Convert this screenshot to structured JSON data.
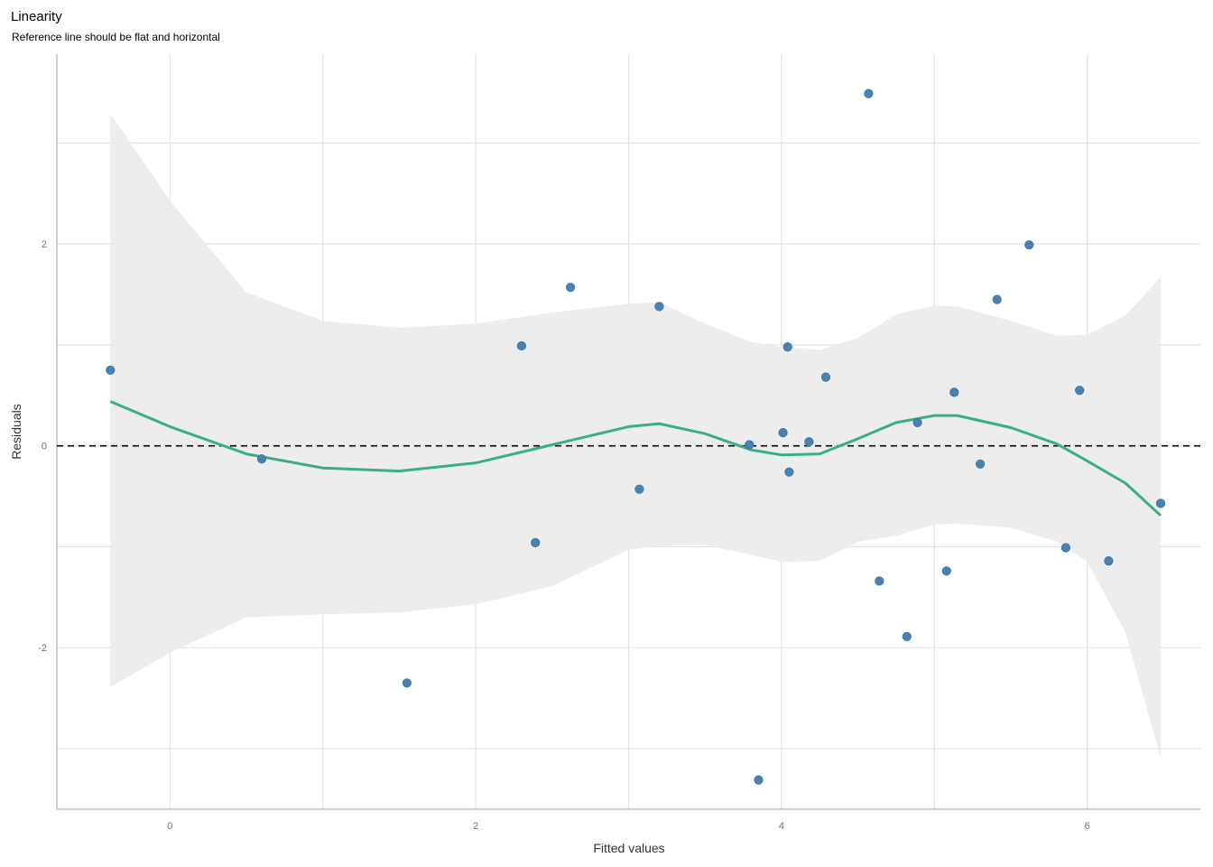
{
  "chart_data": {
    "type": "scatter",
    "title": "Linearity",
    "subtitle": "Reference line should be flat and horizontal",
    "xlabel": "Fitted values",
    "ylabel": "Residuals",
    "xlim": [
      -0.74,
      6.74
    ],
    "ylim": [
      -3.6,
      3.88
    ],
    "x_ticks": [
      0,
      2,
      4,
      6
    ],
    "x_tick_labels": [
      "0",
      "2",
      "4",
      "6"
    ],
    "x_minor_grid": [
      1,
      3,
      5
    ],
    "y_ticks": [
      -2,
      0,
      2
    ],
    "y_tick_labels": [
      "-2",
      "0",
      "2"
    ],
    "y_minor_grid": [
      -3,
      -1,
      1,
      3
    ],
    "grid": true,
    "reference_line": 0,
    "colors": {
      "points": "#4682b4",
      "smooth": "#3aaf85",
      "ci_band": "#ebebeb",
      "grid": "#e3e3e3",
      "axis": "#bdbdbd",
      "reference": "#000000"
    },
    "points": [
      {
        "x": -0.39,
        "y": 0.75
      },
      {
        "x": 0.6,
        "y": -0.13
      },
      {
        "x": 1.55,
        "y": -2.35
      },
      {
        "x": 2.3,
        "y": 0.99
      },
      {
        "x": 2.39,
        "y": -0.96
      },
      {
        "x": 2.62,
        "y": 1.57
      },
      {
        "x": 3.07,
        "y": -0.43
      },
      {
        "x": 3.2,
        "y": 1.38
      },
      {
        "x": 3.79,
        "y": 0.01
      },
      {
        "x": 3.85,
        "y": -3.31
      },
      {
        "x": 4.01,
        "y": 0.13
      },
      {
        "x": 4.04,
        "y": 0.98
      },
      {
        "x": 4.05,
        "y": -0.26
      },
      {
        "x": 4.18,
        "y": 0.04
      },
      {
        "x": 4.29,
        "y": 0.68
      },
      {
        "x": 4.57,
        "y": 3.49
      },
      {
        "x": 4.64,
        "y": -1.34
      },
      {
        "x": 4.82,
        "y": -1.89
      },
      {
        "x": 4.89,
        "y": 0.23
      },
      {
        "x": 5.08,
        "y": -1.24
      },
      {
        "x": 5.13,
        "y": 0.53
      },
      {
        "x": 5.3,
        "y": -0.18
      },
      {
        "x": 5.41,
        "y": 1.45
      },
      {
        "x": 5.62,
        "y": 1.99
      },
      {
        "x": 5.86,
        "y": -1.01
      },
      {
        "x": 5.95,
        "y": 0.55
      },
      {
        "x": 6.14,
        "y": -1.14
      },
      {
        "x": 6.48,
        "y": -0.57
      }
    ],
    "smooth": {
      "x": [
        -0.39,
        0.0,
        0.5,
        1.0,
        1.5,
        2.0,
        2.5,
        3.0,
        3.2,
        3.5,
        3.8,
        4.0,
        4.25,
        4.5,
        4.75,
        5.0,
        5.15,
        5.5,
        5.8,
        6.0,
        6.25,
        6.48
      ],
      "y": [
        0.44,
        0.19,
        -0.08,
        -0.22,
        -0.25,
        -0.17,
        0.01,
        0.19,
        0.22,
        0.12,
        -0.04,
        -0.09,
        -0.08,
        0.07,
        0.23,
        0.3,
        0.3,
        0.18,
        0.02,
        -0.15,
        -0.37,
        -0.69
      ],
      "lower": [
        -2.39,
        -2.05,
        -1.7,
        -1.67,
        -1.65,
        -1.57,
        -1.39,
        -1.03,
        -0.99,
        -0.98,
        -1.08,
        -1.15,
        -1.14,
        -0.95,
        -0.89,
        -0.78,
        -0.77,
        -0.81,
        -0.95,
        -1.15,
        -1.85,
        -3.09
      ],
      "upper": [
        3.29,
        2.43,
        1.52,
        1.24,
        1.17,
        1.21,
        1.32,
        1.41,
        1.42,
        1.21,
        1.03,
        0.98,
        0.95,
        1.07,
        1.3,
        1.39,
        1.38,
        1.24,
        1.09,
        1.1,
        1.29,
        1.67
      ]
    }
  }
}
